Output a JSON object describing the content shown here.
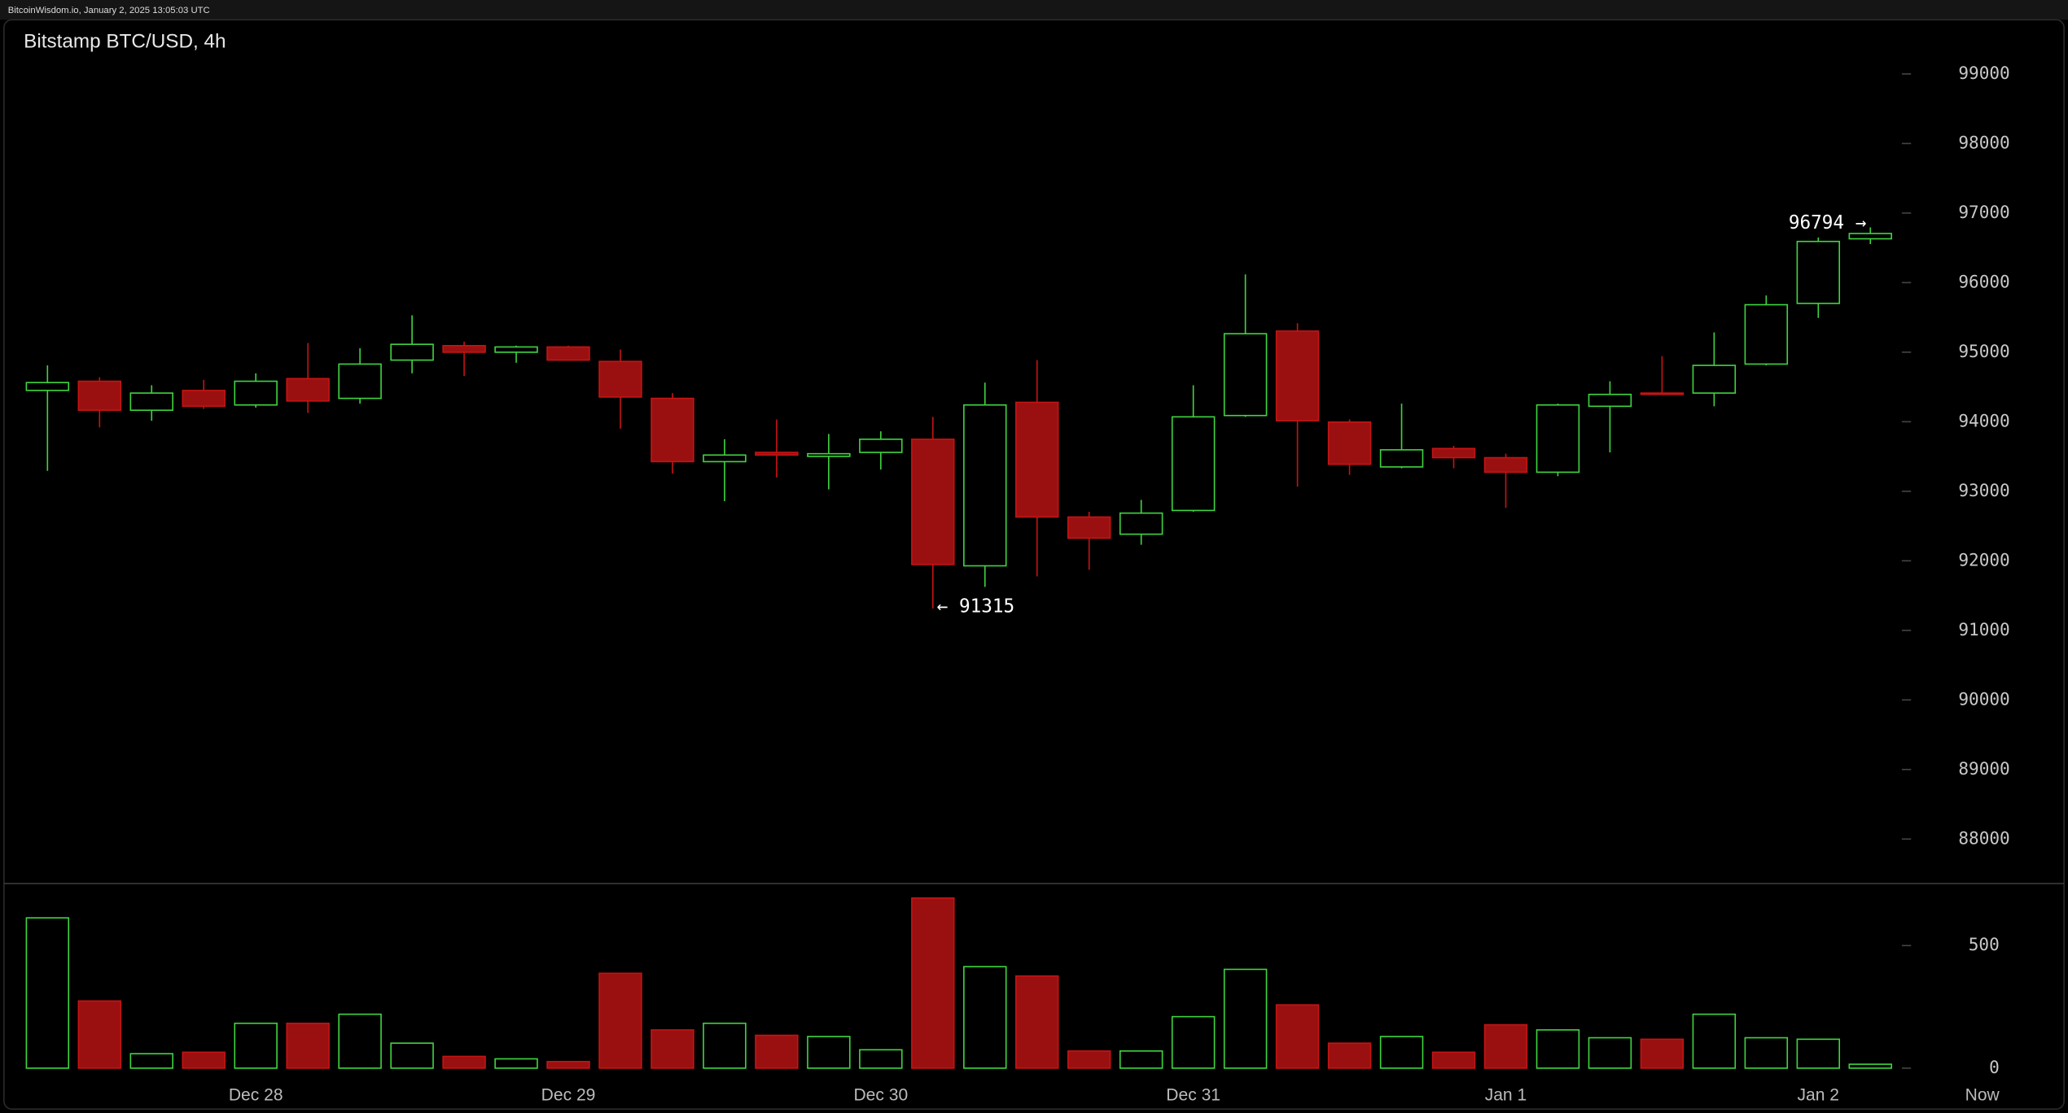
{
  "header": "BitcoinWisdom.io, January 2, 2025 13:05:03 UTC",
  "chart_data": {
    "type": "candlestick",
    "title": "Bitstamp BTC/USD, 4h",
    "categories": [
      null,
      null,
      null,
      null,
      "Dec 28",
      null,
      null,
      null,
      null,
      null,
      "Dec 29",
      null,
      null,
      null,
      null,
      null,
      "Dec 30",
      null,
      null,
      null,
      null,
      null,
      "Dec 31",
      null,
      null,
      null,
      null,
      null,
      "Jan 1",
      null,
      null,
      null,
      null,
      null,
      "Jan 2",
      null
    ],
    "now_label": "Now",
    "open": [
      94450,
      94582,
      94165,
      94450,
      94241,
      94620,
      94336,
      94886,
      95094,
      94999,
      95075,
      94867,
      94336,
      93426,
      93559,
      93502,
      93559,
      93748,
      91928,
      94279,
      92630,
      92383,
      92724,
      94089,
      95303,
      93995,
      93350,
      93615,
      93483,
      93274,
      94222,
      94412,
      94412,
      94829,
      95701,
      96630
    ],
    "high": [
      94810,
      94640,
      94525,
      94601,
      94696,
      95132,
      95056,
      95530,
      95151,
      95094,
      95094,
      95037,
      94412,
      93748,
      94033,
      93824,
      93862,
      94070,
      94563,
      94886,
      92705,
      92876,
      94525,
      96118,
      95417,
      94033,
      94260,
      93653,
      93540,
      94260,
      94582,
      94943,
      95284,
      95815,
      96649,
      96794
    ],
    "low": [
      93293,
      93919,
      94014,
      94184,
      94203,
      94127,
      94260,
      94696,
      94658,
      94848,
      94886,
      93900,
      93255,
      92857,
      93198,
      93027,
      93312,
      91315,
      91625,
      91776,
      91871,
      92231,
      92705,
      94070,
      93066,
      93236,
      93331,
      93331,
      92762,
      93217,
      93559,
      94393,
      94222,
      94810,
      95492,
      96554
    ],
    "close": [
      94563,
      94165,
      94412,
      94222,
      94582,
      94298,
      94829,
      95113,
      94999,
      95075,
      94886,
      94355,
      93426,
      93521,
      93521,
      93540,
      93748,
      91947,
      94241,
      92630,
      92326,
      92686,
      94070,
      95265,
      94014,
      93388,
      93596,
      93483,
      93274,
      94241,
      94393,
      94393,
      94810,
      95682,
      96592,
      96706
    ],
    "volume": [
      613,
      274,
      59,
      65,
      183,
      183,
      220,
      102,
      48,
      38,
      27,
      387,
      156,
      183,
      134,
      129,
      75,
      694,
      414,
      376,
      70,
      70,
      210,
      403,
      258,
      102,
      129,
      65,
      177,
      156,
      124,
      118,
      220,
      124,
      118,
      16
    ],
    "low_labels": [
      null,
      null,
      null,
      null,
      null,
      null,
      null,
      null,
      null,
      null,
      null,
      null,
      null,
      null,
      null,
      null,
      null,
      "← 91315",
      null,
      null,
      null,
      null,
      null,
      null,
      null,
      null,
      null,
      null,
      null,
      null,
      null,
      null,
      null,
      null,
      null,
      null
    ],
    "high_labels": [
      null,
      null,
      null,
      null,
      null,
      null,
      null,
      null,
      null,
      null,
      null,
      null,
      null,
      null,
      null,
      null,
      null,
      null,
      null,
      null,
      null,
      null,
      null,
      null,
      null,
      null,
      null,
      null,
      null,
      null,
      null,
      null,
      null,
      null,
      null,
      "96794 →"
    ],
    "up_color": "#3fd43f",
    "down_color": "#c41414",
    "down_fill": "#9a1010",
    "ylim": [
      87360,
      99760
    ],
    "yticks": [
      88000,
      89000,
      90000,
      91000,
      92000,
      93000,
      94000,
      95000,
      96000,
      97000,
      98000,
      99000
    ],
    "volume_ylim": [
      0,
      753
    ],
    "volume_yticks": [
      0,
      500
    ]
  }
}
